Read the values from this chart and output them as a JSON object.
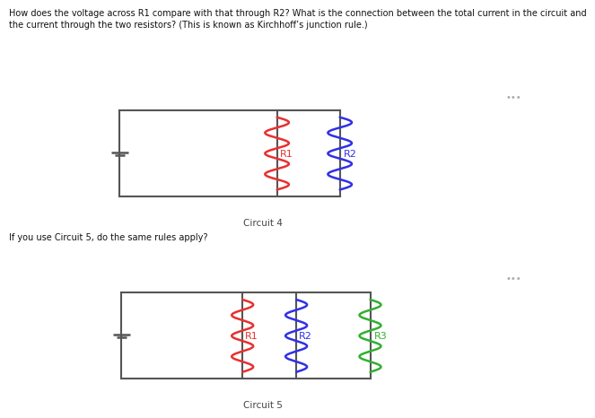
{
  "title1": "Circuit 4",
  "title2": "Circuit 5",
  "text1": "How does the voltage across R1 compare with that through R2? What is the connection between the total current in the circuit and\nthe current through the two resistors? (This is known as Kirchhoff’s junction rule.)",
  "text2": "If you use Circuit 5, do the same rules apply?",
  "dots": "•••",
  "bg_color": "#efefef",
  "page_color": "#ffffff",
  "r1_color": "#e83030",
  "r2_color": "#3030e8",
  "r3_color": "#30b030",
  "wire_color": "#555555",
  "battery_color": "#555555",
  "label_fontsize": 8,
  "text_fontsize": 7.8
}
